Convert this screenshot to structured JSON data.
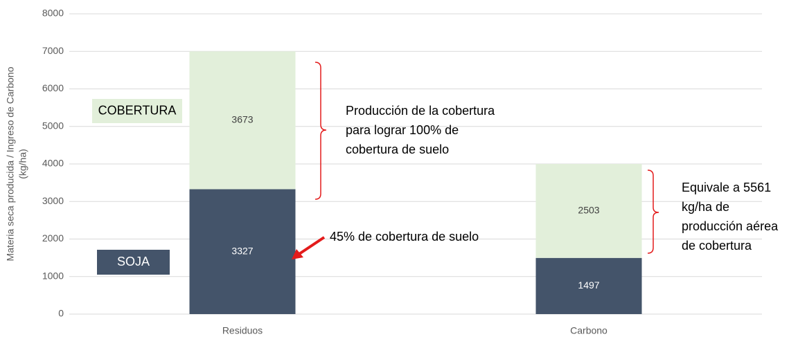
{
  "chart_data": {
    "type": "stacked_bar",
    "ylabel": [
      "Materia seca producida / Ingreso de Carbono",
      "(kg/ha)"
    ],
    "categories": [
      "Residuos",
      "Carbono"
    ],
    "series": [
      {
        "name": "SOJA",
        "color": "#44546a",
        "values": [
          3327,
          1497
        ]
      },
      {
        "name": "COBERTURA",
        "color": "#e2efda",
        "values": [
          3673,
          2503
        ]
      }
    ],
    "ylim": [
      0,
      8000
    ],
    "yticks": [
      0,
      1000,
      2000,
      3000,
      4000,
      5000,
      6000,
      7000,
      8000
    ],
    "grid": true,
    "data_labels": true,
    "annotations": [
      {
        "lines": [
          "Producción de la cobertura",
          "para lograr 100% de",
          "cobertura de suelo"
        ]
      },
      {
        "lines": [
          "45% de cobertura de suelo"
        ]
      },
      {
        "lines": [
          "Equivale a 5561",
          "kg/ha de",
          "producción aérea",
          "de cobertura"
        ]
      }
    ]
  }
}
